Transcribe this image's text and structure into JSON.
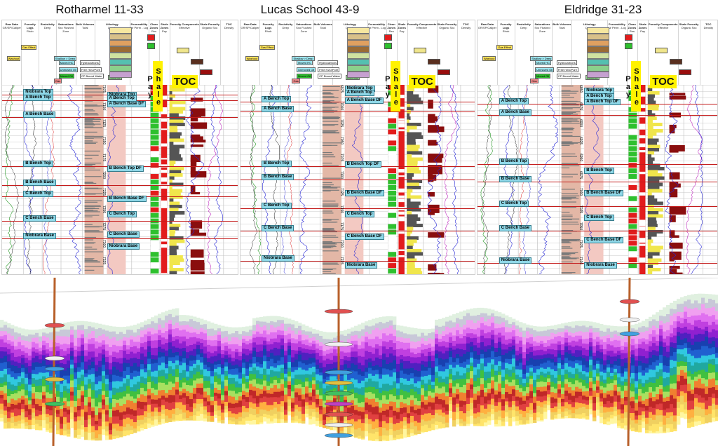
{
  "wells": [
    {
      "name": "Rotharmel 11-33",
      "depths": [
        "7075",
        "7100",
        "7125",
        "7150",
        "7175",
        "7200",
        "7225",
        "7250",
        "7275",
        "7300",
        "7325"
      ],
      "markers": [
        {
          "label": "Niobrara Top",
          "pos": 0.05
        },
        {
          "label": "A Bench Top",
          "pos": 0.08
        },
        {
          "label": "A Bench Base",
          "pos": 0.17
        },
        {
          "label": "B Bench Top",
          "pos": 0.43
        },
        {
          "label": "B Bench Base",
          "pos": 0.53
        },
        {
          "label": "C Bench Top",
          "pos": 0.59
        },
        {
          "label": "C Bench Base",
          "pos": 0.72
        },
        {
          "label": "Niobrara Base",
          "pos": 0.81
        }
      ],
      "right_markers": [
        {
          "label": "Niobrara Top",
          "pos": 0.05
        },
        {
          "label": "A Bench Top",
          "pos": 0.07
        },
        {
          "label": "A Bench Base DF",
          "pos": 0.1
        },
        {
          "label": "B Bench Top DF",
          "pos": 0.44
        },
        {
          "label": "B Bench Base DF",
          "pos": 0.6
        },
        {
          "label": "C Bench Top",
          "pos": 0.68
        },
        {
          "label": "C Bench Base",
          "pos": 0.79
        },
        {
          "label": "Niobrara Base",
          "pos": 0.85
        }
      ]
    },
    {
      "name": "Lucas School 43-9",
      "depths": [
        "6975",
        "7000",
        "7025",
        "7050",
        "7075",
        "7100",
        "7125",
        "7150",
        "7175",
        "7200",
        "7225"
      ],
      "markers": [
        {
          "label": "A Bench Top",
          "pos": 0.09
        },
        {
          "label": "A Bench Base",
          "pos": 0.14
        },
        {
          "label": "B Bench Top",
          "pos": 0.43
        },
        {
          "label": "B Bench Base",
          "pos": 0.5
        },
        {
          "label": "C Bench Top",
          "pos": 0.65
        },
        {
          "label": "C Bench Base",
          "pos": 0.77
        },
        {
          "label": "Niobrara Base",
          "pos": 0.93
        }
      ],
      "right_markers": [
        {
          "label": "Niobrara Top",
          "pos": 0.02
        },
        {
          "label": "A Bench Top",
          "pos": 0.04
        },
        {
          "label": "A Bench Base DF",
          "pos": 0.08
        },
        {
          "label": "B Bench Top DF",
          "pos": 0.42
        },
        {
          "label": "B Bench Base DF",
          "pos": 0.57
        },
        {
          "label": "C Bench Top",
          "pos": 0.68
        },
        {
          "label": "C Bench Base DF",
          "pos": 0.8
        },
        {
          "label": "Niobrara Base",
          "pos": 0.95
        }
      ]
    },
    {
      "name": "Eldridge 31-23",
      "depths": [
        "6850",
        "6875",
        "6900",
        "6925",
        "6950",
        "6975",
        "7000",
        "7025",
        "7050",
        "7075",
        "7100"
      ],
      "markers": [
        {
          "label": "A Bench Top",
          "pos": 0.1
        },
        {
          "label": "A Bench Base",
          "pos": 0.16
        },
        {
          "label": "B Bench Top",
          "pos": 0.42
        },
        {
          "label": "B Bench Base",
          "pos": 0.51
        },
        {
          "label": "C Bench Top",
          "pos": 0.64
        },
        {
          "label": "C Bench Base",
          "pos": 0.77
        },
        {
          "label": "Niobrara Base",
          "pos": 0.94
        }
      ],
      "right_markers": [
        {
          "label": "Niobrara Top",
          "pos": 0.03
        },
        {
          "label": "A Bench Top",
          "pos": 0.06
        },
        {
          "label": "A Bench Top DF",
          "pos": 0.09
        },
        {
          "label": "B Bench Top",
          "pos": 0.45
        },
        {
          "label": "B Bench Base DF",
          "pos": 0.57
        },
        {
          "label": "C Bench Top",
          "pos": 0.7
        },
        {
          "label": "C Bench Base DF",
          "pos": 0.82
        },
        {
          "label": "Niobrara Base",
          "pos": 0.95
        }
      ]
    }
  ],
  "labels": {
    "shale_pay": "Shale Pay",
    "toc": "TOC"
  },
  "header_columns": [
    {
      "title": "Raw Data",
      "sub": "GR/SP/Caliper"
    },
    {
      "title": "Porosity Logs",
      "sub": "Rhob"
    },
    {
      "title": "Resistivity",
      "sub": "Deep"
    },
    {
      "title": "Saturations",
      "sub": "Sxo Flushed Zone"
    },
    {
      "title": "Bulk Volumes",
      "sub": "Total"
    },
    {
      "title": "Lithology",
      "sub": "Quartz"
    },
    {
      "title": "Permeability",
      "sub": "Air Perm - Log"
    },
    {
      "title": "Clean Zones",
      "sub": "Res"
    },
    {
      "title": "Shale Zones",
      "sub": "Pay"
    },
    {
      "title": "Porosity Components",
      "sub": "Effective"
    },
    {
      "title": "Shale Porosity",
      "sub": "Organic Sxo"
    },
    {
      "title": "TOC",
      "sub": "Density"
    }
  ],
  "header_chips": {
    "washout": "Washout",
    "gas_effect": "Gas Effect",
    "shale_deep": "Shallow > Deep",
    "moved_hc": "Moved HC",
    "unmoved_oil": "Unmoved Oil",
    "moved_oil": "Moved Oil",
    "hydrocarbons": "Hydrocarbons",
    "free_h2o": "Free H2O/Pore",
    "cp_bound": "CP Bound Water",
    "dolomite": "Dolomite",
    "gas": "Gas"
  },
  "colors": {
    "marker_fill": "#8fd8e8",
    "marker_line": "#c41c1c",
    "shale_pay": "#fff200",
    "pay_green": "#2ec02e",
    "pay_red": "#e21c1c",
    "toc_red": "#8a0e0e",
    "resistivity_blue": "#2a2ad6",
    "gr_black": "#111111",
    "porosity_orange": "#f07a1a"
  }
}
